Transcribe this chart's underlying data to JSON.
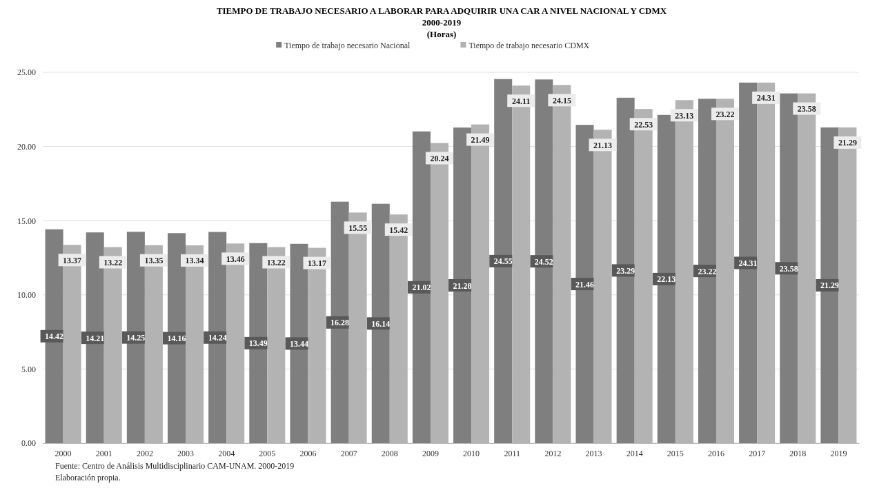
{
  "chart_data": {
    "type": "bar",
    "title": "TIEMPO DE TRABAJO NECESARIO A LABORAR PARA ADQUIRIR UNA CAR A NIVEL NACIONAL Y CDMX",
    "subtitle": "2000-2019",
    "ylabel": "(Horas)",
    "categories": [
      "2000",
      "2001",
      "2002",
      "2003",
      "2004",
      "2005",
      "2006",
      "2007",
      "2008",
      "2009",
      "2010",
      "2011",
      "2012",
      "2013",
      "2014",
      "2015",
      "2016",
      "2017",
      "2018",
      "2019"
    ],
    "series": [
      {
        "name": "Tiempo de trabajo necesario Nacional",
        "color": "#7f7f7f",
        "values": [
          14.42,
          14.21,
          14.25,
          14.16,
          14.24,
          13.49,
          13.44,
          16.28,
          16.14,
          21.02,
          21.28,
          24.55,
          24.52,
          21.46,
          23.29,
          22.13,
          23.22,
          24.31,
          23.58,
          21.29
        ]
      },
      {
        "name": "Tiempo de trabajo necesario CDMX",
        "color": "#b3b3b3",
        "values": [
          13.37,
          13.22,
          13.35,
          13.34,
          13.46,
          13.22,
          13.17,
          15.55,
          15.42,
          20.24,
          21.49,
          24.11,
          24.15,
          21.13,
          22.53,
          23.13,
          23.22,
          24.31,
          23.58,
          21.29
        ]
      }
    ],
    "ylim": [
      0,
      25
    ],
    "yticks": [
      {
        "value": 0,
        "label": "0.00"
      },
      {
        "value": 5,
        "label": "5.00"
      },
      {
        "value": 10,
        "label": "10.00"
      },
      {
        "value": 15,
        "label": "15.00"
      },
      {
        "value": 20,
        "label": "20.00"
      },
      {
        "value": 25,
        "label": "25.00"
      }
    ],
    "grid": "y",
    "legend": "top",
    "data_labels": true,
    "annotations": [
      "Fuente: Centro de Análisis Multidisciplinario CAM-UNAM. 2000-2019",
      "Elaboración propia."
    ]
  }
}
